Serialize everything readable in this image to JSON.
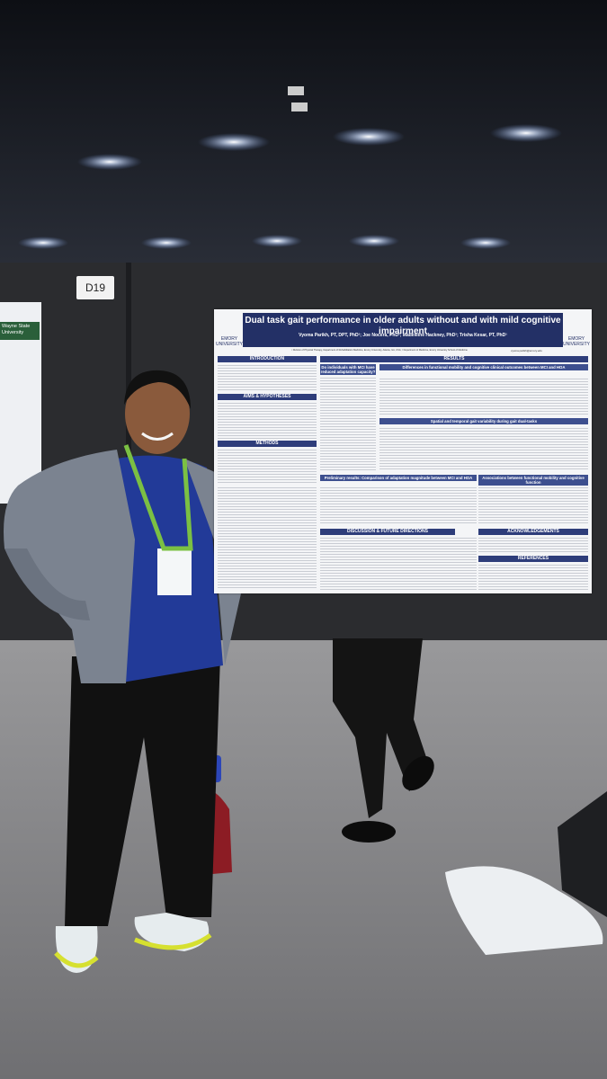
{
  "booth": "D19",
  "neighbor_poster": "Wayne State University",
  "poster": {
    "title": "Dual task gait performance in older adults without and with mild cognitive impairment",
    "authors": "Vyoma Parikh, PT, DPT, PhD¹; Joe Nocera, PhD²; Madeleine Hackney, PhD²; Trisha Kesar, PT, PhD¹",
    "affiliations": "¹ Division of Physical Therapy, Department of Rehabilitation Medicine, Emory University, Atlanta, GA, USA; ² Department of Medicine, Emory University School of Medicine",
    "email": "vyoma.parikh@emory.edu",
    "logo": "EMORY UNIVERSITY",
    "sections": [
      "INTRODUCTION",
      "AIMS & HYPOTHESES",
      "METHODS",
      "RESULTS",
      "DISCUSSION & FUTURE DIRECTIONS",
      "ACKNOWLEDGEMENTS",
      "REFERENCES"
    ],
    "panels": [
      "Do individuals with MCI have reduced adaptation capacity?",
      "Differences in functional mobility and cognitive clinical outcomes between MCI and HOA",
      "Spatial and temporal gait variability during gait dual-tasks",
      "Preliminary results: Comparison of adaptation magnitude between MCI and HOA",
      "Associations between functional mobility and cognitive function"
    ]
  }
}
